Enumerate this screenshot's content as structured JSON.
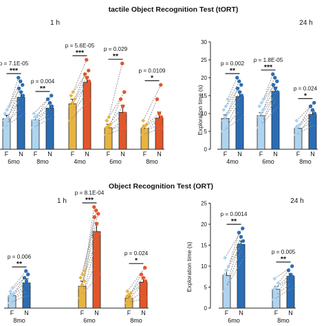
{
  "figure": {
    "title_top": "tactile Object Recognition Test (tORT)",
    "title_bottom": "Object Recognition Test (ORT)",
    "y_label": "Exploration time (s)"
  },
  "colors": {
    "F_light_blue": "#aed4f0",
    "N_dark_blue": "#2a6db5",
    "F_yellow": "#e8b440",
    "N_orange": "#e2562a",
    "link_line": "#8a8a8a"
  },
  "chart_data": [
    {
      "type": "bar",
      "panel": "tORT 1 h",
      "subtitle": "1 h",
      "ylim": [
        0,
        30
      ],
      "groups": [
        {
          "label": "6mo",
          "palette": "blue",
          "categories": [
            "F",
            "N"
          ],
          "means": [
            8.5,
            14.5
          ],
          "sem": [
            1.0,
            1.6
          ],
          "p": "p = 7.1E-05",
          "stars": "***",
          "F_points": [
            6,
            7,
            7,
            8,
            8.5,
            9,
            10,
            11,
            12
          ],
          "N_points": [
            10,
            12,
            14,
            15,
            16,
            17,
            18,
            19,
            20
          ]
        },
        {
          "label": "8mo",
          "palette": "blue",
          "categories": [
            "F",
            "N"
          ],
          "means": [
            8.2,
            11.5
          ],
          "sem": [
            0.8,
            1.2
          ],
          "p": "p = 0.004",
          "stars": "**",
          "F_points": [
            6,
            7,
            8,
            8,
            9,
            9.5,
            10
          ],
          "N_points": [
            9,
            10,
            11,
            12,
            13,
            14,
            15
          ]
        },
        {
          "label": "4mo",
          "palette": "warm",
          "categories": [
            "F",
            "N"
          ],
          "means": [
            12.7,
            18.7
          ],
          "sem": [
            1.3,
            1.6
          ],
          "p": "p = 5.6E-05",
          "stars": "***",
          "F_points": [
            8,
            10,
            11,
            12,
            13,
            14,
            15,
            16
          ],
          "N_points": [
            14,
            16,
            18,
            19,
            20,
            21,
            22,
            25
          ]
        },
        {
          "label": "6mo",
          "palette": "warm",
          "categories": [
            "F",
            "N"
          ],
          "means": [
            6.0,
            10.3
          ],
          "sem": [
            1.0,
            2.0
          ],
          "p": "p = 0.029",
          "stars": "**",
          "F_points": [
            4,
            5,
            5,
            6,
            6.5,
            7,
            8,
            9
          ],
          "N_points": [
            6,
            7,
            8,
            10,
            12,
            14,
            16,
            24
          ]
        },
        {
          "label": "8mo",
          "palette": "warm",
          "categories": [
            "F",
            "N"
          ],
          "means": [
            5.8,
            8.7
          ],
          "sem": [
            0.9,
            1.7
          ],
          "p": "p = 0.0109",
          "stars": "*",
          "F_points": [
            4,
            5,
            5.5,
            6,
            6.5,
            7,
            8
          ],
          "N_points": [
            6,
            7,
            8,
            9,
            10,
            14,
            18
          ]
        }
      ]
    },
    {
      "type": "bar",
      "panel": "tORT 24 h",
      "subtitle": "24 h",
      "ylim": [
        0,
        30
      ],
      "yticks": [
        0,
        5,
        10,
        15,
        20,
        25,
        30
      ],
      "groups": [
        {
          "label": "4mo",
          "palette": "blue",
          "categories": [
            "F",
            "N"
          ],
          "means": [
            8.6,
            14.7
          ],
          "sem": [
            1.0,
            1.4
          ],
          "p": "p = 0.002",
          "stars": "**",
          "F_points": [
            5,
            6,
            7,
            8,
            9,
            10,
            11,
            12,
            14
          ],
          "N_points": [
            9,
            11,
            13,
            15,
            16,
            17,
            18,
            19,
            20
          ]
        },
        {
          "label": "6mo",
          "palette": "blue",
          "categories": [
            "F",
            "N"
          ],
          "means": [
            9.4,
            16.2
          ],
          "sem": [
            0.9,
            1.2
          ],
          "p": "p = 1.8E-05",
          "stars": "***",
          "F_points": [
            6,
            7,
            8,
            9,
            10,
            11,
            12,
            13,
            14
          ],
          "N_points": [
            12,
            14,
            15,
            16,
            17,
            18,
            19,
            20,
            21
          ]
        },
        {
          "label": "8mo",
          "palette": "blue",
          "categories": [
            "F",
            "N"
          ],
          "means": [
            5.9,
            9.7
          ],
          "sem": [
            0.7,
            1.0
          ],
          "p": "p = 0.024",
          "stars": "*",
          "F_points": [
            4,
            5,
            5,
            6,
            6.5,
            7,
            8
          ],
          "N_points": [
            7,
            8,
            9,
            10,
            11,
            12,
            13
          ]
        }
      ]
    },
    {
      "type": "bar",
      "panel": "ORT 1 h",
      "subtitle": "1 h",
      "ylim": [
        0,
        30
      ],
      "groups": [
        {
          "label": "8mo",
          "palette": "blue",
          "categories": [
            "F",
            "N"
          ],
          "means": [
            3.7,
            7.5
          ],
          "sem": [
            0.6,
            1.2
          ],
          "p": "p = 0.006",
          "stars": "**",
          "F_points": [
            1.5,
            2.5,
            3,
            3.5,
            4,
            4.5,
            5,
            6
          ],
          "N_points": [
            4,
            5,
            6,
            7,
            8,
            9,
            10,
            11
          ]
        },
        {
          "label": "6mo",
          "palette": "warm",
          "categories": [
            "F",
            "N"
          ],
          "means": [
            6.5,
            22.7
          ],
          "sem": [
            1.5,
            2.6
          ],
          "p": "p = 8.1E-04",
          "stars": "***",
          "F_points": [
            3,
            4,
            5,
            6,
            7,
            8,
            9,
            10,
            11
          ],
          "N_points": [
            10,
            14,
            18,
            22,
            25,
            27,
            28,
            29,
            30
          ]
        },
        {
          "label": "8mo",
          "palette": "warm",
          "categories": [
            "F",
            "N"
          ],
          "means": [
            3.0,
            7.7
          ],
          "sem": [
            0.6,
            1.4
          ],
          "p": "p = 0.024",
          "stars": "*",
          "F_points": [
            1.5,
            2,
            3,
            3.5,
            4,
            4.5,
            5
          ],
          "N_points": [
            3,
            5,
            7,
            8,
            9,
            10,
            12
          ]
        }
      ]
    },
    {
      "type": "bar",
      "panel": "ORT 24 h",
      "subtitle": "24 h",
      "ylim": [
        0,
        25
      ],
      "yticks": [
        0,
        5,
        10,
        15,
        20,
        25
      ],
      "groups": [
        {
          "label": "6mo",
          "palette": "blue",
          "categories": [
            "F",
            "N"
          ],
          "means": [
            7.8,
            15.2
          ],
          "sem": [
            1.2,
            0.8
          ],
          "p": "p = 0.0014",
          "stars": "**",
          "F_points": [
            4,
            5,
            7,
            8,
            9,
            10,
            12
          ],
          "N_points": [
            12,
            14,
            15,
            16,
            17,
            18,
            19
          ]
        },
        {
          "label": "8mo",
          "palette": "blue",
          "categories": [
            "F",
            "N"
          ],
          "means": [
            4.5,
            7.6
          ],
          "sem": [
            0.7,
            0.6
          ],
          "p": "p = 0.005",
          "stars": "**",
          "F_points": [
            2,
            3,
            4,
            4.5,
            5,
            6,
            7
          ],
          "N_points": [
            5,
            6,
            7,
            7.5,
            8,
            9,
            10
          ]
        }
      ]
    }
  ]
}
